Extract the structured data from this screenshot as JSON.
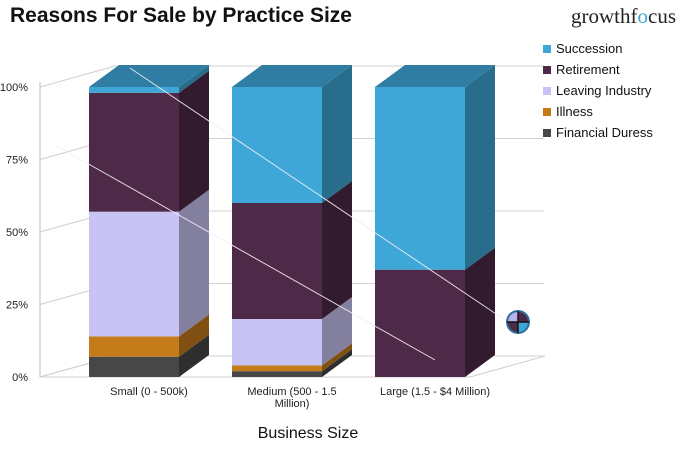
{
  "header": {
    "title": "Reasons For Sale by Practice Size",
    "brand_prefix": "growthf",
    "brand_accent": "o",
    "brand_suffix": "cus"
  },
  "colors": {
    "Succession": "#3ea7d8",
    "Retirement": "#4e2a48",
    "Leaving Industry": "#c8c3f5",
    "Illness": "#c47b1a",
    "Financial Duress": "#474747",
    "brand_accent": "#3ea7d8"
  },
  "chart_data": {
    "type": "bar",
    "stacked": true,
    "three_d": true,
    "title": "Reasons For Sale by Practice Size",
    "xlabel": "Business Size",
    "ylabel": "",
    "categories": [
      "Small (0 - 500k)",
      "Medium (500 - 1.5 Million)",
      "Large (1.5 - $4 Million)"
    ],
    "category_label_lines": [
      [
        "Small (0 - 500k)"
      ],
      [
        "Medium (500 - 1.5",
        "Million)"
      ],
      [
        "Large (1.5 - $4 Million)"
      ]
    ],
    "series": [
      {
        "name": "Financial Duress",
        "values": [
          7,
          2,
          0
        ]
      },
      {
        "name": "Illness",
        "values": [
          7,
          2,
          0
        ]
      },
      {
        "name": "Leaving Industry",
        "values": [
          43,
          16,
          0
        ]
      },
      {
        "name": "Retirement",
        "values": [
          41,
          40,
          37
        ]
      },
      {
        "name": "Succession",
        "values": [
          2,
          40,
          63
        ]
      }
    ],
    "ylim": [
      0,
      100
    ],
    "yticks": [
      0,
      25,
      50,
      75,
      100
    ],
    "ytick_labels": [
      "0%",
      "25%",
      "50%",
      "75%",
      "100%"
    ],
    "grid": true,
    "legend": {
      "position": "right",
      "entries": [
        "Succession",
        "Retirement",
        "Leaving Industry",
        "Illness",
        "Financial Duress"
      ]
    }
  }
}
